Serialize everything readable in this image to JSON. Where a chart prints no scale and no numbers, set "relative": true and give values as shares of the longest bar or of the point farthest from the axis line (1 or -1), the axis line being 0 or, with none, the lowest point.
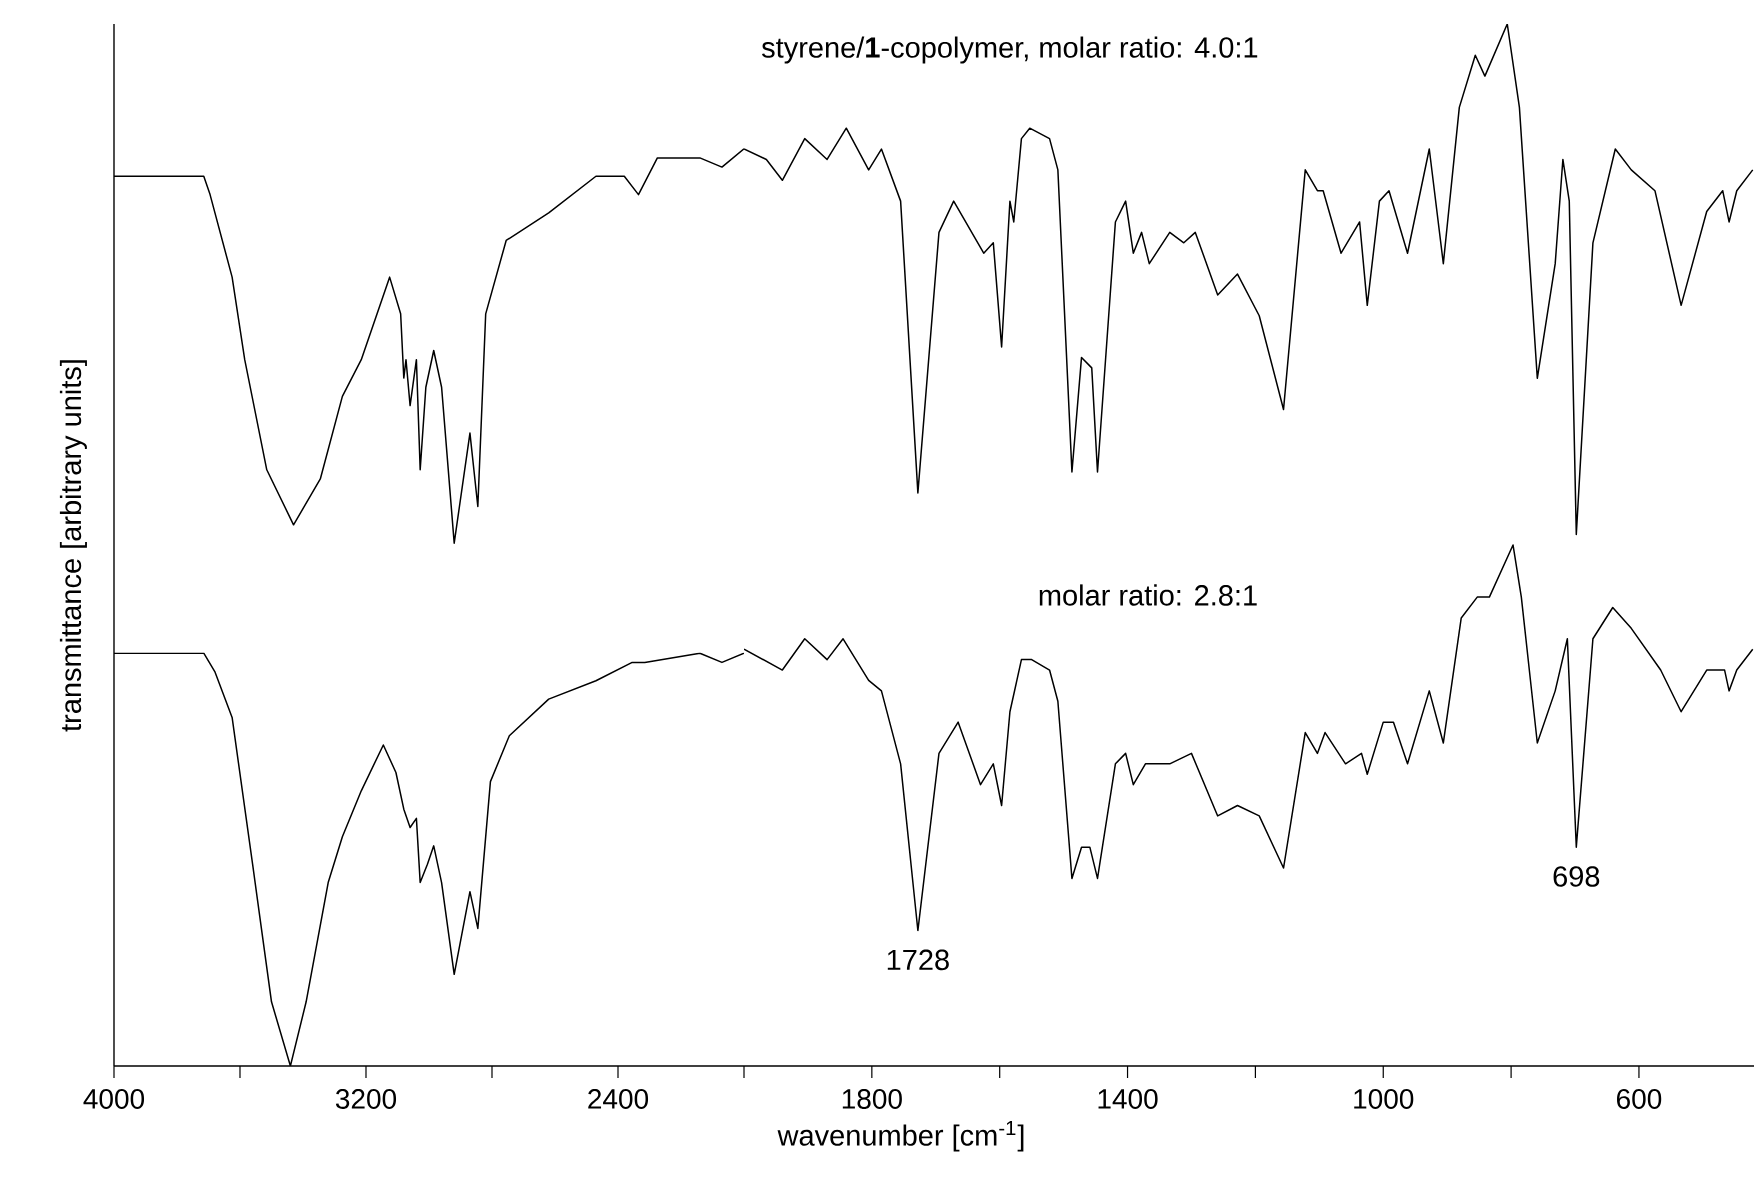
{
  "chart_data": [
    {
      "type": "line",
      "relative": true,
      "xlabel": "wavenumber [cm$^{-1}$]",
      "ylabel": "transmittance [arbitrary units]",
      "xlim": [
        4000,
        2000
      ],
      "xticks": [
        4000,
        {
          "value": 3600,
          "label": null
        },
        3200,
        {
          "value": 2800,
          "label": null
        },
        2400
      ],
      "series": [
        {
          "color": "#000000",
          "x": [
            4000,
            3715,
            3695,
            3625,
            3585,
            3515,
            3430,
            3345,
            3275,
            3215,
            3125,
            3090,
            3080,
            3073,
            3060,
            3040,
            3028,
            3010,
            2985,
            2960,
            2920,
            2870,
            2845,
            2820,
            2755,
            2620,
            2470,
            2380,
            2335,
            2275,
            2140,
            2070,
            2000
          ],
          "values": [
            0.97,
            0.97,
            0.95,
            0.86,
            0.77,
            0.65,
            0.59,
            0.64,
            0.73,
            0.77,
            0.86,
            0.82,
            0.75,
            0.77,
            0.72,
            0.77,
            0.65,
            0.74,
            0.78,
            0.74,
            0.57,
            0.69,
            0.61,
            0.82,
            0.9,
            0.93,
            0.97,
            0.97,
            0.95,
            0.99,
            0.99,
            0.98,
            1.0
          ]
        },
        {
          "color": "#000000",
          "x": [
            4000,
            3715,
            3680,
            3625,
            3560,
            3500,
            3440,
            3390,
            3320,
            3275,
            3215,
            3145,
            3105,
            3080,
            3060,
            3040,
            3028,
            3005,
            2985,
            2960,
            2920,
            2870,
            2845,
            2805,
            2745,
            2620,
            2470,
            2355,
            2315,
            2140,
            2070,
            2000
          ],
          "values": [
            0.45,
            0.45,
            0.43,
            0.38,
            0.22,
            0.07,
            0.0,
            0.07,
            0.2,
            0.25,
            0.3,
            0.35,
            0.32,
            0.28,
            0.26,
            0.27,
            0.2,
            0.22,
            0.24,
            0.2,
            0.1,
            0.19,
            0.15,
            0.31,
            0.36,
            0.4,
            0.42,
            0.44,
            0.44,
            0.45,
            0.44,
            0.45
          ]
        }
      ]
    },
    {
      "type": "line",
      "relative": true,
      "xlim": [
        2000,
        420
      ],
      "xticks": [
        {
          "value": 2000,
          "label": null
        },
        1800,
        {
          "value": 1600,
          "label": null
        },
        1400,
        {
          "value": 1200,
          "label": null
        },
        1000,
        {
          "value": 800,
          "label": null
        },
        600
      ],
      "annotations": [
        "styrene/**1**-copolymer, molar ratio: 4.0:1",
        "molar ratio: 2.8:1",
        {
          "text": "1728",
          "x": 1728,
          "y": 0.13
        },
        {
          "text": "698",
          "x": 698,
          "y": 0.21
        }
      ],
      "series": [
        {
          "color": "#000000",
          "x": [
            2000,
            1965,
            1940,
            1905,
            1870,
            1840,
            1805,
            1785,
            1755,
            1728,
            1695,
            1672,
            1625,
            1610,
            1597,
            1584,
            1578,
            1566,
            1553,
            1522,
            1509,
            1487,
            1472,
            1456,
            1447,
            1419,
            1403,
            1391,
            1378,
            1366,
            1334,
            1312,
            1294,
            1259,
            1228,
            1194,
            1156,
            1122,
            1103,
            1094,
            1066,
            1037,
            1025,
            1006,
            991,
            962,
            928,
            906,
            881,
            856,
            841,
            806,
            787,
            759,
            731,
            719,
            709,
            698,
            672,
            637,
            612,
            575,
            534,
            494,
            469,
            459,
            447,
            422
          ],
          "values": [
            0.88,
            0.87,
            0.85,
            0.89,
            0.87,
            0.9,
            0.86,
            0.88,
            0.83,
            0.55,
            0.8,
            0.83,
            0.78,
            0.79,
            0.69,
            0.83,
            0.81,
            0.89,
            0.9,
            0.89,
            0.86,
            0.57,
            0.68,
            0.67,
            0.57,
            0.81,
            0.83,
            0.78,
            0.8,
            0.77,
            0.8,
            0.79,
            0.8,
            0.74,
            0.76,
            0.72,
            0.63,
            0.86,
            0.84,
            0.84,
            0.78,
            0.81,
            0.73,
            0.83,
            0.84,
            0.78,
            0.88,
            0.77,
            0.92,
            0.97,
            0.95,
            1.0,
            0.92,
            0.66,
            0.77,
            0.87,
            0.83,
            0.51,
            0.79,
            0.88,
            0.86,
            0.84,
            0.73,
            0.82,
            0.84,
            0.81,
            0.84,
            0.86
          ]
        },
        {
          "color": "#000000",
          "x": [
            2000,
            1940,
            1905,
            1870,
            1845,
            1805,
            1785,
            1755,
            1728,
            1695,
            1665,
            1630,
            1610,
            1597,
            1584,
            1566,
            1550,
            1522,
            1509,
            1487,
            1472,
            1459,
            1447,
            1419,
            1403,
            1391,
            1372,
            1334,
            1300,
            1259,
            1228,
            1194,
            1156,
            1122,
            1103,
            1091,
            1059,
            1034,
            1025,
            1000,
            984,
            962,
            928,
            906,
            878,
            853,
            834,
            797,
            784,
            759,
            731,
            712,
            698,
            672,
            641,
            612,
            566,
            534,
            494,
            466,
            459,
            447,
            422
          ],
          "values": [
            0.4,
            0.38,
            0.41,
            0.39,
            0.41,
            0.37,
            0.36,
            0.29,
            0.13,
            0.3,
            0.33,
            0.27,
            0.29,
            0.25,
            0.34,
            0.39,
            0.39,
            0.38,
            0.35,
            0.18,
            0.21,
            0.21,
            0.18,
            0.29,
            0.3,
            0.27,
            0.29,
            0.29,
            0.3,
            0.24,
            0.25,
            0.24,
            0.19,
            0.32,
            0.3,
            0.32,
            0.29,
            0.3,
            0.28,
            0.33,
            0.33,
            0.29,
            0.36,
            0.31,
            0.43,
            0.45,
            0.45,
            0.5,
            0.45,
            0.31,
            0.36,
            0.41,
            0.21,
            0.41,
            0.44,
            0.42,
            0.38,
            0.34,
            0.38,
            0.38,
            0.36,
            0.38,
            0.4
          ]
        }
      ]
    }
  ]
}
